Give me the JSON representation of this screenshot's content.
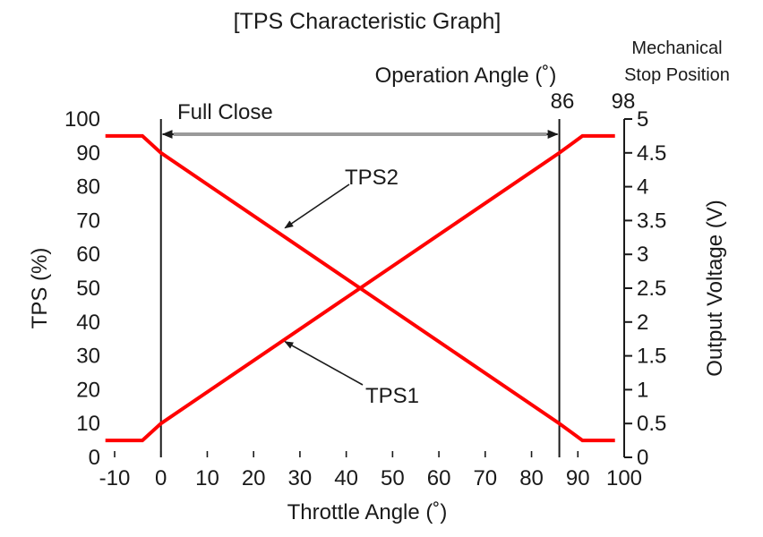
{
  "chart_data": {
    "type": "line",
    "title": "[TPS Characteristic Graph]",
    "xlabel": "Throttle Angle (˚)",
    "ylabel": "TPS (%)",
    "y2label": "Output Voltage (V)",
    "xlim": [
      -10,
      100
    ],
    "ylim": [
      0,
      100
    ],
    "y2lim": [
      0,
      5
    ],
    "x_ticks": [
      -10,
      0,
      10,
      20,
      30,
      40,
      50,
      60,
      70,
      80,
      90,
      100
    ],
    "x_tick_labels": [
      "-10",
      "0",
      "10",
      "20",
      "30",
      "40",
      "50",
      "60",
      "70",
      "80",
      "90",
      "100"
    ],
    "y_ticks": [
      0,
      10,
      20,
      30,
      40,
      50,
      60,
      70,
      80,
      90,
      100
    ],
    "y_tick_labels": [
      "0",
      "10",
      "20",
      "30",
      "40",
      "50",
      "60",
      "70",
      "80",
      "90",
      "100"
    ],
    "y2_ticks": [
      0,
      0.5,
      1,
      1.5,
      2,
      2.5,
      3,
      3.5,
      4,
      4.5,
      5
    ],
    "y2_tick_labels": [
      "0",
      "0.5",
      "1",
      "1.5",
      "2",
      "2.5",
      "3",
      "3.5",
      "4",
      "4.5",
      "5"
    ],
    "grid": false,
    "series_color": "#ff0000",
    "series": [
      {
        "name": "TPS1",
        "x": [
          -12,
          -4,
          0,
          86,
          91,
          98
        ],
        "y": [
          5,
          5,
          10,
          90,
          95,
          95
        ]
      },
      {
        "name": "TPS2",
        "x": [
          -12,
          -4,
          0,
          86,
          91,
          98
        ],
        "y": [
          95,
          95,
          90,
          10,
          5,
          5
        ]
      }
    ],
    "vlines": [
      0,
      86
    ],
    "annotations": {
      "full_close": "Full Close",
      "operation_angle": "Operation Angle (˚)",
      "operation_angle_value": "86",
      "mechanical_stop_line1": "Mechanical",
      "mechanical_stop_line2": "Stop Position",
      "mechanical_stop_value": "98"
    },
    "callouts": [
      {
        "label": "TPS2",
        "x": 26,
        "y": 67
      },
      {
        "label": "TPS1",
        "x": 26,
        "y": 35
      }
    ]
  }
}
